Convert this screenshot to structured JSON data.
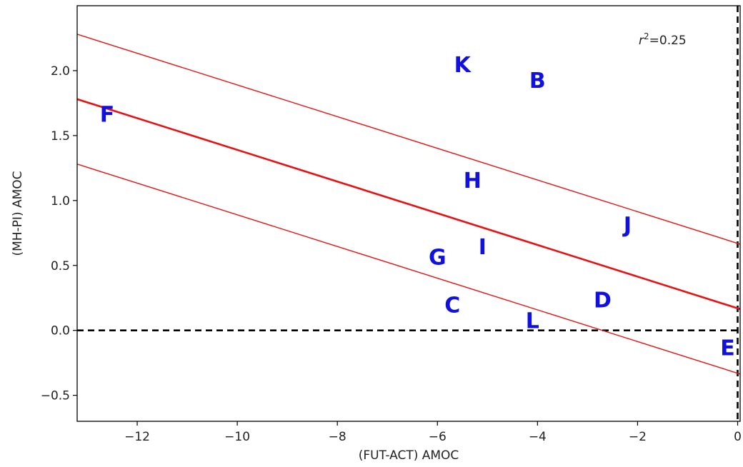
{
  "chart_data": {
    "type": "scatter",
    "xlabel": "(FUT-ACT) AMOC",
    "ylabel": "(MH-PI) AMOC",
    "xlim": [
      -13.2,
      0.05
    ],
    "ylim": [
      -0.7,
      2.5
    ],
    "xticks": [
      -12,
      -10,
      -8,
      -6,
      -4,
      -2,
      0
    ],
    "yticks": [
      -0.5,
      0.0,
      0.5,
      1.0,
      1.5,
      2.0
    ],
    "xtick_labels": [
      "−12",
      "−10",
      "−8",
      "−6",
      "−4",
      "−2",
      "0"
    ],
    "ytick_labels": [
      "−0.5",
      "0.0",
      "0.5",
      "1.0",
      "1.5",
      "2.0"
    ],
    "points": [
      {
        "label": "K",
        "x": -5.5,
        "y": 2.04
      },
      {
        "label": "B",
        "x": -4.0,
        "y": 1.92
      },
      {
        "label": "F",
        "x": -12.6,
        "y": 1.66
      },
      {
        "label": "H",
        "x": -5.3,
        "y": 1.15
      },
      {
        "label": "J",
        "x": -2.2,
        "y": 0.81
      },
      {
        "label": "I",
        "x": -5.1,
        "y": 0.64
      },
      {
        "label": "G",
        "x": -6.0,
        "y": 0.56
      },
      {
        "label": "D",
        "x": -2.7,
        "y": 0.23
      },
      {
        "label": "C",
        "x": -5.7,
        "y": 0.19
      },
      {
        "label": "L",
        "x": -4.1,
        "y": 0.07
      },
      {
        "label": "E",
        "x": -0.2,
        "y": -0.14
      }
    ],
    "regression": {
      "slope": -0.122,
      "intercept": 0.17
    },
    "bands": [
      {
        "offset": 0.5
      },
      {
        "offset": -0.5
      }
    ],
    "reference_lines": {
      "hline_y": 0.0,
      "vline_x": 0.0
    },
    "annotation": {
      "text_main": "r",
      "text_sup": "2",
      "text_rest": "=0.25"
    },
    "colors": {
      "points": "#1010e0",
      "regression": "#e81010",
      "reference": "#000000"
    },
    "grid": false
  }
}
